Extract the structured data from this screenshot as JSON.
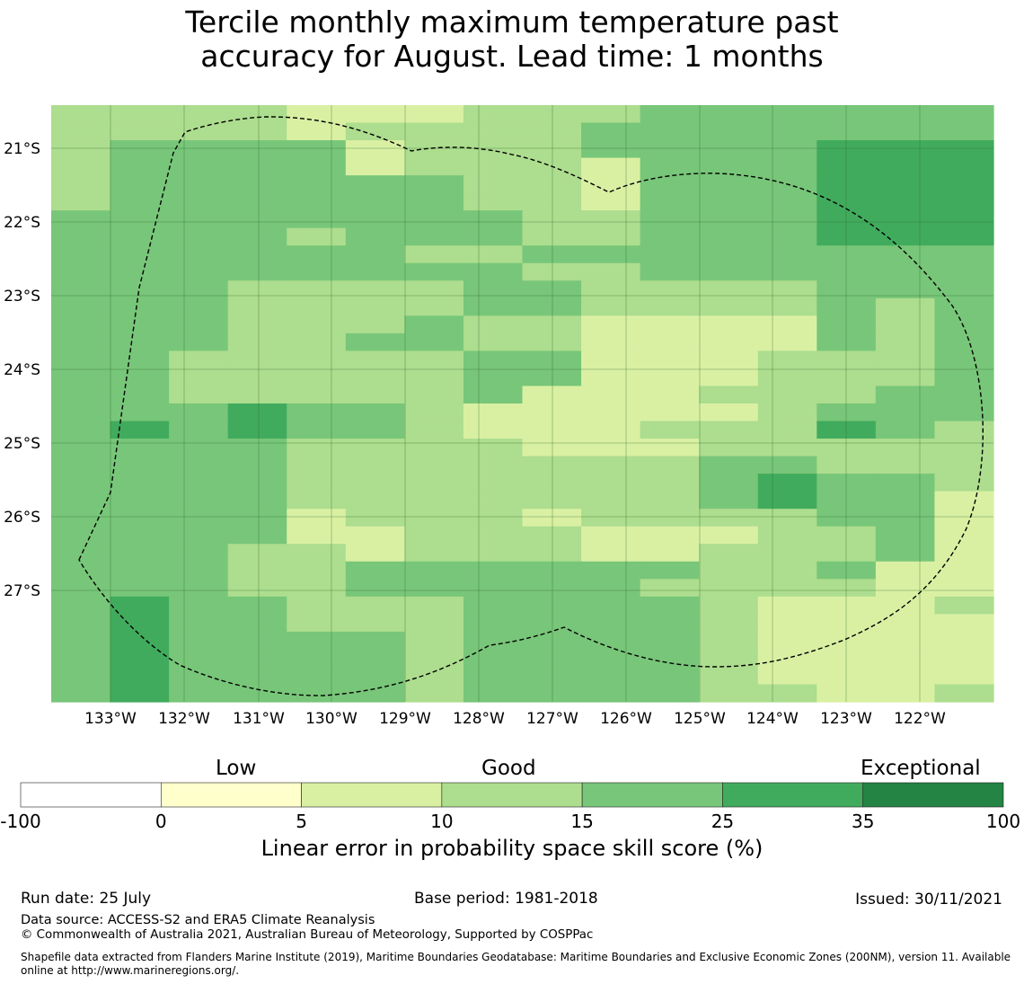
{
  "title_line1": "Tercile monthly maximum temperature past",
  "title_line2": "accuracy for August. Lead time: 1 months",
  "map": {
    "lat_labels": [
      "21°S",
      "22°S",
      "23°S",
      "24°S",
      "25°S",
      "26°S",
      "27°S"
    ],
    "lon_labels": [
      "133°W",
      "132°W",
      "131°W",
      "130°W",
      "129°W",
      "128°W",
      "127°W",
      "126°W",
      "125°W",
      "124°W",
      "123°W",
      "122°W"
    ],
    "grid_levels_note_colors": {
      "2": "#d9f0a3",
      "3": "#addd8e",
      "4": "#78c679",
      "5": "#41ab5d",
      "1": "#ffffcc"
    },
    "cells": [
      "3333222333444444",
      "3333233334444444",
      "3444423334444555",
      "3444423332444555",
      "3444444332444555",
      "3444444332444555",
      "4444444433444555",
      "4444344433444555",
      "4444443344444444",
      "4444444433444444",
      "4443333443333444",
      "4443333443333434",
      "4443334332222434",
      "4443344332222434",
      "4433333442223334",
      "4433333442223334",
      "4433333422233344",
      "4445443222223444",
      "4545443222333543",
      "4444333322233333",
      "4444333333344333",
      "4444333333345443",
      "4444333333345442",
      "4444233323333442",
      "4444223332223342",
      "4443323332233342",
      "4443344444433422",
      "4443344444333322",
      "4544333444432223",
      "4544333444432222",
      "4544443444432222",
      "4544443444432222",
      "4544443444432222",
      "4544443444433223"
    ]
  },
  "colorbar": {
    "categories": [
      "Low",
      "Good",
      "Exceptional"
    ],
    "ticks": [
      "-100",
      "0",
      "5",
      "10",
      "15",
      "25",
      "35",
      "100"
    ],
    "colors": [
      "#ffffff",
      "#ffffcc",
      "#d9f0a3",
      "#addd8e",
      "#78c679",
      "#41ab5d",
      "#238443"
    ],
    "label": "Linear error in probability space skill score (%)"
  },
  "footer": {
    "run_date": "Run date: 25 July",
    "base_period": "Base period: 1981-2018",
    "issued": "Issued: 30/11/2021",
    "data_source": "Data source: ACCESS-S2 and ERA5 Climate Reanalysis",
    "copyright": "© Commonwealth of Australia 2021, Australian Bureau of Meteorology, Supported by COSPPac",
    "shapefile_line1": "Shapefile data extracted from Flanders Marine Institute (2019), Maritime Boundaries Geodatabase: Maritime Boundaries and Exclusive Economic Zones (200NM), version 11. Available",
    "shapefile_line2": "online at http://www.marineregions.org/."
  }
}
